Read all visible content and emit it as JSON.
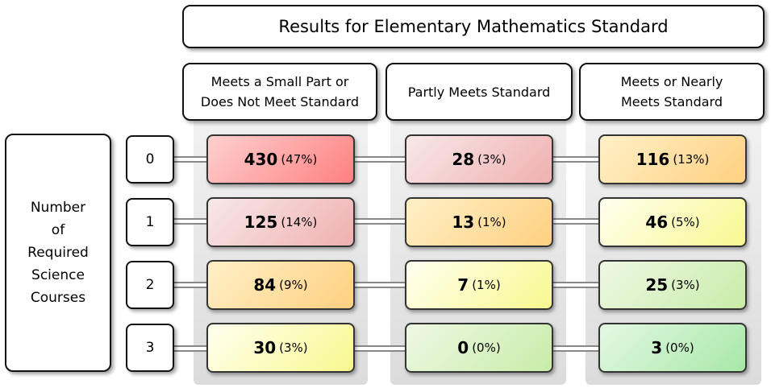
{
  "title": "Results for Elementary Mathematics Standard",
  "columns": [
    {
      "line1": "Meets a Small Part or",
      "line2": "Does Not Meet Standard"
    },
    {
      "line1": "Partly Meets Standard",
      "line2": ""
    },
    {
      "line1": "Meets or Nearly",
      "line2": "Meets Standard"
    }
  ],
  "row_axis": {
    "lines": [
      "Number",
      "of",
      "Required",
      "Science",
      "Courses"
    ]
  },
  "rows": [
    "0",
    "1",
    "2",
    "3"
  ],
  "cells": [
    [
      {
        "value": "430",
        "pct": "(47%)"
      },
      {
        "value": "28",
        "pct": "(3%)"
      },
      {
        "value": "116",
        "pct": "(13%)"
      }
    ],
    [
      {
        "value": "125",
        "pct": "(14%)"
      },
      {
        "value": "13",
        "pct": "(1%)"
      },
      {
        "value": "46",
        "pct": "(5%)"
      }
    ],
    [
      {
        "value": "84",
        "pct": "(9%)"
      },
      {
        "value": "7",
        "pct": "(1%)"
      },
      {
        "value": "25",
        "pct": "(3%)"
      }
    ],
    [
      {
        "value": "30",
        "pct": "(3%)"
      },
      {
        "value": "0",
        "pct": "(0%)"
      },
      {
        "value": "3",
        "pct": "(0%)"
      }
    ]
  ],
  "cell_colors": [
    [
      [
        "#ffd0d0",
        "#ff8080"
      ],
      [
        "#f8e8e8",
        "#f0b0b0"
      ],
      [
        "#fff0c8",
        "#ffd080"
      ]
    ],
    [
      [
        "#f8e8e8",
        "#f0b0b0"
      ],
      [
        "#fff0c8",
        "#ffd080"
      ],
      [
        "#fffff0",
        "#f8f890"
      ]
    ],
    [
      [
        "#fff0c8",
        "#ffd080"
      ],
      [
        "#fffff0",
        "#f8f890"
      ],
      [
        "#eef8e4",
        "#c8eca8"
      ]
    ],
    [
      [
        "#fffff0",
        "#f8f890"
      ],
      [
        "#eef8e4",
        "#c8eca8"
      ],
      [
        "#e4f8e4",
        "#a8e8a8"
      ]
    ]
  ]
}
